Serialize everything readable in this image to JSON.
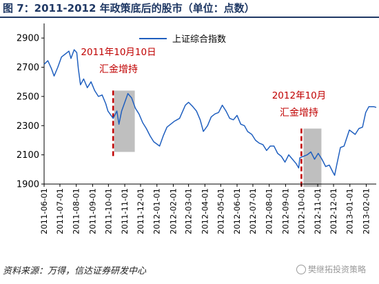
{
  "title": "图 7：2011-2012 年政策底后的股市（单位：点数）",
  "source": "资料来源：万得，信达证券研发中心",
  "watermark": "樊继拓投资策略",
  "colors": {
    "title": "#1f3864",
    "line": "#1f5fbf",
    "annotation": "#c00000",
    "shade": "#bfbfbf"
  },
  "chart_data": {
    "type": "line",
    "title": "",
    "xlabel": "",
    "ylabel": "",
    "ylim": [
      1900,
      3000
    ],
    "yticks": [
      1900,
      2100,
      2300,
      2500,
      2700,
      2900
    ],
    "xlim": [
      "2011-06-01",
      "2013-02-20"
    ],
    "xticks": [
      "2011-06-01",
      "2011-07-01",
      "2011-08-01",
      "2011-09-01",
      "2011-10-01",
      "2011-11-01",
      "2011-12-01",
      "2012-01-01",
      "2012-02-01",
      "2012-03-01",
      "2012-04-01",
      "2012-05-01",
      "2012-06-01",
      "2012-07-01",
      "2012-08-01",
      "2012-09-01",
      "2012-10-01",
      "2012-11-01",
      "2012-12-01",
      "2013-01-01",
      "2013-02-01"
    ],
    "grid": false,
    "legend": "top-center",
    "series": [
      {
        "name": "上证综合指数",
        "points": [
          [
            "2011-06-01",
            2720
          ],
          [
            "2011-06-08",
            2745
          ],
          [
            "2011-06-15",
            2690
          ],
          [
            "2011-06-20",
            2640
          ],
          [
            "2011-06-27",
            2700
          ],
          [
            "2011-07-04",
            2770
          ],
          [
            "2011-07-11",
            2790
          ],
          [
            "2011-07-18",
            2810
          ],
          [
            "2011-07-22",
            2760
          ],
          [
            "2011-07-28",
            2820
          ],
          [
            "2011-08-02",
            2800
          ],
          [
            "2011-08-05",
            2690
          ],
          [
            "2011-08-09",
            2580
          ],
          [
            "2011-08-15",
            2620
          ],
          [
            "2011-08-22",
            2560
          ],
          [
            "2011-08-29",
            2600
          ],
          [
            "2011-09-05",
            2540
          ],
          [
            "2011-09-12",
            2500
          ],
          [
            "2011-09-19",
            2510
          ],
          [
            "2011-09-26",
            2450
          ],
          [
            "2011-09-30",
            2400
          ],
          [
            "2011-10-10",
            2350
          ],
          [
            "2011-10-17",
            2400
          ],
          [
            "2011-10-21",
            2310
          ],
          [
            "2011-10-26",
            2400
          ],
          [
            "2011-11-01",
            2460
          ],
          [
            "2011-11-07",
            2520
          ],
          [
            "2011-11-14",
            2490
          ],
          [
            "2011-11-21",
            2420
          ],
          [
            "2011-11-28",
            2380
          ],
          [
            "2011-12-05",
            2320
          ],
          [
            "2011-12-12",
            2280
          ],
          [
            "2011-12-19",
            2230
          ],
          [
            "2011-12-26",
            2190
          ],
          [
            "2012-01-06",
            2160
          ],
          [
            "2012-01-13",
            2230
          ],
          [
            "2012-01-20",
            2290
          ],
          [
            "2012-02-03",
            2330
          ],
          [
            "2012-02-13",
            2350
          ],
          [
            "2012-02-24",
            2440
          ],
          [
            "2012-03-01",
            2460
          ],
          [
            "2012-03-09",
            2430
          ],
          [
            "2012-03-16",
            2400
          ],
          [
            "2012-03-23",
            2340
          ],
          [
            "2012-03-29",
            2260
          ],
          [
            "2012-04-06",
            2300
          ],
          [
            "2012-04-13",
            2360
          ],
          [
            "2012-04-20",
            2380
          ],
          [
            "2012-04-27",
            2390
          ],
          [
            "2012-05-04",
            2440
          ],
          [
            "2012-05-11",
            2400
          ],
          [
            "2012-05-18",
            2350
          ],
          [
            "2012-05-25",
            2340
          ],
          [
            "2012-06-01",
            2370
          ],
          [
            "2012-06-08",
            2310
          ],
          [
            "2012-06-15",
            2300
          ],
          [
            "2012-06-21",
            2260
          ],
          [
            "2012-06-29",
            2240
          ],
          [
            "2012-07-06",
            2200
          ],
          [
            "2012-07-13",
            2180
          ],
          [
            "2012-07-20",
            2170
          ],
          [
            "2012-07-27",
            2130
          ],
          [
            "2012-08-03",
            2160
          ],
          [
            "2012-08-10",
            2160
          ],
          [
            "2012-08-17",
            2110
          ],
          [
            "2012-08-24",
            2090
          ],
          [
            "2012-08-31",
            2050
          ],
          [
            "2012-09-07",
            2100
          ],
          [
            "2012-09-14",
            2070
          ],
          [
            "2012-09-21",
            2040
          ],
          [
            "2012-09-26",
            2010
          ],
          [
            "2012-09-28",
            2080
          ],
          [
            "2012-10-12",
            2100
          ],
          [
            "2012-10-19",
            2120
          ],
          [
            "2012-10-26",
            2070
          ],
          [
            "2012-11-02",
            2110
          ],
          [
            "2012-11-09",
            2070
          ],
          [
            "2012-11-16",
            2020
          ],
          [
            "2012-11-23",
            2030
          ],
          [
            "2012-11-30",
            1980
          ],
          [
            "2012-12-03",
            1960
          ],
          [
            "2012-12-07",
            2030
          ],
          [
            "2012-12-14",
            2150
          ],
          [
            "2012-12-21",
            2160
          ],
          [
            "2012-12-31",
            2270
          ],
          [
            "2013-01-11",
            2240
          ],
          [
            "2013-01-18",
            2280
          ],
          [
            "2013-01-25",
            2290
          ],
          [
            "2013-01-31",
            2390
          ],
          [
            "2013-02-06",
            2430
          ],
          [
            "2013-02-15",
            2430
          ],
          [
            "2013-02-20",
            2425
          ]
        ]
      }
    ],
    "annotations": [
      {
        "label_line1": "2011年10月10日",
        "label_line2": "汇金增持",
        "date": "2011-10-10",
        "shade_start": "2011-10-12",
        "shade_end": "2011-11-20",
        "shade_ylim": [
          2120,
          2540
        ]
      },
      {
        "label_line1": "2012年10月",
        "label_line2": "汇金增持",
        "date": "2012-10-01",
        "shade_start": "2012-10-05",
        "shade_end": "2012-11-08",
        "shade_ylim": [
          1880,
          2280
        ]
      }
    ]
  }
}
